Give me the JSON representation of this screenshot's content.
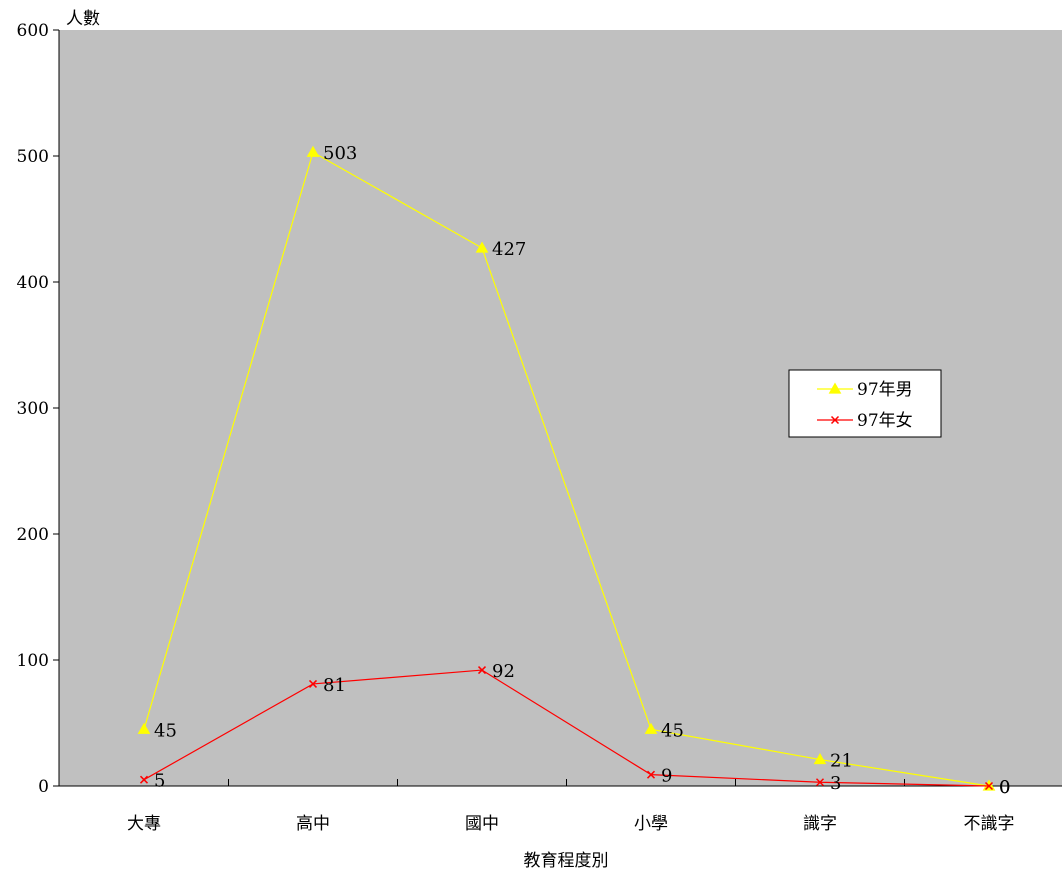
{
  "chart_data": {
    "type": "line",
    "title": "",
    "xlabel": "教育程度別",
    "ylabel": "人數",
    "categories": [
      "大專",
      "高中",
      "國中",
      "小學",
      "識字",
      "不識字"
    ],
    "ylim": [
      0,
      600
    ],
    "yticks": [
      0,
      100,
      200,
      300,
      400,
      500,
      600
    ],
    "grid": false,
    "legend_position": "right",
    "plot_background": "#c0c0c0",
    "series": [
      {
        "name": "97年男",
        "values": [
          45,
          503,
          427,
          45,
          21,
          0
        ],
        "color": "#ffff00",
        "marker": "triangle"
      },
      {
        "name": "97年女",
        "values": [
          5,
          81,
          92,
          9,
          3,
          0
        ],
        "color": "#ff0000",
        "marker": "x"
      }
    ]
  }
}
